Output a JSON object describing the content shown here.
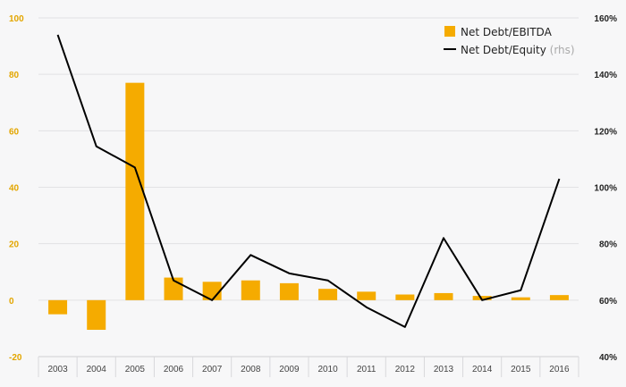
{
  "chart_data": {
    "type": "bar",
    "categories": [
      "2003",
      "2004",
      "2005",
      "2006",
      "2007",
      "2008",
      "2009",
      "2010",
      "2011",
      "2012",
      "2013",
      "2014",
      "2015",
      "2016"
    ],
    "series": [
      {
        "name": "Net Debt/EBITDA",
        "type": "bar",
        "axis": "left",
        "values": [
          -5,
          -10.5,
          77,
          8,
          6.5,
          7,
          6,
          4,
          3,
          2,
          2.5,
          1.5,
          1,
          1.8
        ]
      },
      {
        "name": "Net Debt/Equity",
        "type": "line",
        "axis": "right",
        "values": [
          154,
          114.5,
          107,
          67,
          60,
          76,
          69.5,
          67,
          57.5,
          50.5,
          82,
          60,
          63.5,
          103
        ]
      }
    ],
    "ylim_left": [
      -20,
      100
    ],
    "yticks_left": [
      "-20",
      "0",
      "20",
      "40",
      "60",
      "80",
      "100"
    ],
    "ylim_right": [
      40,
      160
    ],
    "yticks_right": [
      "40%",
      "60%",
      "80%",
      "100%",
      "120%",
      "140%",
      "160%"
    ],
    "legend": {
      "position": "top-right",
      "rhs_note": "(rhs)"
    },
    "colors": {
      "bar": "#f5ab00",
      "line": "#000000",
      "grid": "#e2e2e4",
      "left_axis_text": "#e3a600"
    },
    "grid": true
  }
}
